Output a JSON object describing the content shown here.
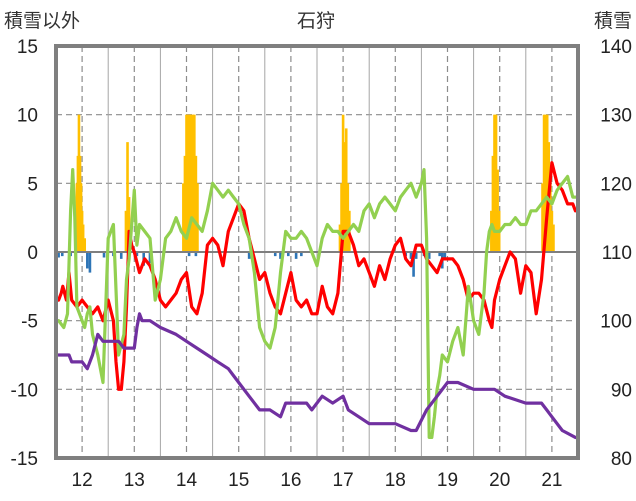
{
  "chart_data": {
    "type": "bar+line",
    "title": "石狩",
    "left_axis_label": "積雪以外",
    "right_axis_label": "積雪",
    "left_ylim": [
      -15,
      15
    ],
    "left_ticks": [
      15,
      10,
      5,
      0,
      -5,
      -10,
      -15
    ],
    "right_ylim": [
      80,
      140
    ],
    "right_ticks": [
      140,
      130,
      120,
      110,
      100,
      90,
      80
    ],
    "x_range": [
      11.5,
      21.5
    ],
    "x_ticks": [
      12,
      13,
      14,
      15,
      16,
      17,
      18,
      19,
      20,
      21
    ],
    "x_tick_labels": [
      "12",
      "13",
      "14",
      "15",
      "16",
      "17",
      "18",
      "19",
      "20",
      "21"
    ],
    "grid": "dashed vertical and horizontal",
    "colors": {
      "red": "#ff0000",
      "green": "#92d050",
      "purple": "#7030a0",
      "orange": "#ffc000",
      "blue": "#2e75b6",
      "frame": "#7f7f7f",
      "grid": "#8c8c8c"
    },
    "bars_orange": [
      [
        11.87,
        3
      ],
      [
        11.9,
        5
      ],
      [
        11.92,
        7
      ],
      [
        11.94,
        10
      ],
      [
        11.96,
        7
      ],
      [
        11.98,
        5
      ],
      [
        12.0,
        3
      ],
      [
        12.02,
        2
      ],
      [
        12.05,
        1
      ],
      [
        12.84,
        3
      ],
      [
        12.87,
        8
      ],
      [
        12.9,
        4
      ],
      [
        13.94,
        5
      ],
      [
        13.97,
        7
      ],
      [
        14.0,
        10
      ],
      [
        14.03,
        10
      ],
      [
        14.06,
        10
      ],
      [
        14.09,
        10
      ],
      [
        14.12,
        10
      ],
      [
        14.15,
        10
      ],
      [
        14.18,
        7
      ],
      [
        14.21,
        5
      ],
      [
        16.94,
        2
      ],
      [
        16.97,
        5
      ],
      [
        17.0,
        10
      ],
      [
        17.03,
        8
      ],
      [
        17.06,
        9
      ],
      [
        17.09,
        5
      ],
      [
        17.12,
        3
      ],
      [
        19.84,
        3
      ],
      [
        19.87,
        7
      ],
      [
        19.9,
        10
      ],
      [
        19.93,
        10
      ],
      [
        19.96,
        6
      ],
      [
        19.99,
        3
      ],
      [
        20.82,
        5
      ],
      [
        20.85,
        10
      ],
      [
        20.88,
        10
      ],
      [
        20.91,
        10
      ],
      [
        20.94,
        8
      ],
      [
        20.97,
        5
      ],
      [
        21.0,
        3
      ],
      [
        21.03,
        2
      ]
    ],
    "bars_blue": [
      [
        11.55,
        -0.4
      ],
      [
        11.62,
        -0.3
      ],
      [
        11.78,
        -0.3
      ],
      [
        11.88,
        -0.5
      ],
      [
        12.1,
        -1.2
      ],
      [
        12.15,
        -1.5
      ],
      [
        12.42,
        -0.4
      ],
      [
        12.6,
        -0.3
      ],
      [
        12.75,
        -0.5
      ],
      [
        13.05,
        -0.3
      ],
      [
        13.18,
        -1.0
      ],
      [
        13.3,
        -0.8
      ],
      [
        14.05,
        -0.3
      ],
      [
        14.18,
        -0.3
      ],
      [
        15.2,
        -0.5
      ],
      [
        15.7,
        -0.3
      ],
      [
        15.8,
        -0.5
      ],
      [
        15.95,
        -0.3
      ],
      [
        16.1,
        -0.5
      ],
      [
        16.2,
        -0.3
      ],
      [
        18.2,
        -0.3
      ],
      [
        18.3,
        -0.5
      ],
      [
        18.35,
        -1.8
      ],
      [
        18.4,
        -0.5
      ],
      [
        18.55,
        -0.3
      ],
      [
        18.65,
        -0.5
      ],
      [
        18.85,
        -0.3
      ],
      [
        18.9,
        -1.2
      ],
      [
        18.95,
        -0.5
      ]
    ],
    "series": [
      {
        "color": "red",
        "axis": "left",
        "x": [
          11.55,
          11.6,
          11.63,
          11.7,
          11.75,
          11.8,
          11.9,
          12.0,
          12.1,
          12.2,
          12.3,
          12.4,
          12.5,
          12.6,
          12.65,
          12.7,
          12.75,
          12.8,
          12.85,
          12.9,
          12.95,
          13.0,
          13.1,
          13.2,
          13.3,
          13.4,
          13.5,
          13.6,
          13.7,
          13.8,
          13.9,
          14.0,
          14.1,
          14.2,
          14.3,
          14.4,
          14.5,
          14.6,
          14.7,
          14.8,
          14.9,
          15.0,
          15.1,
          15.2,
          15.3,
          15.4,
          15.5,
          15.6,
          15.7,
          15.8,
          15.9,
          16.0,
          16.1,
          16.2,
          16.3,
          16.4,
          16.5,
          16.6,
          16.7,
          16.8,
          16.9,
          17.0,
          17.1,
          17.2,
          17.3,
          17.4,
          17.5,
          17.6,
          17.7,
          17.8,
          17.9,
          18.0,
          18.1,
          18.2,
          18.3,
          18.4,
          18.5,
          18.6,
          18.7,
          18.8,
          18.9,
          19.0,
          19.1,
          19.2,
          19.3,
          19.4,
          19.5,
          19.6,
          19.7,
          19.8,
          19.85,
          19.9,
          20.0,
          20.1,
          20.2,
          20.3,
          20.4,
          20.5,
          20.6,
          20.7,
          20.8,
          20.9,
          21.0,
          21.1,
          21.2,
          21.3,
          21.4,
          21.45
        ],
        "values": [
          -3.5,
          -3.0,
          -2.5,
          -3.5,
          -1.5,
          -3.5,
          -4.0,
          -3.5,
          -4.0,
          -4.5,
          -4.0,
          -5.0,
          -3.5,
          -5.0,
          -8.0,
          -10.0,
          -10.0,
          -8.0,
          -4.0,
          1.5,
          0.5,
          0.0,
          -1.5,
          -0.5,
          -1.0,
          -2.0,
          -3.5,
          -4.0,
          -3.5,
          -3.0,
          -2.0,
          -1.5,
          -4.0,
          -4.5,
          -3.0,
          0.5,
          1.0,
          0.5,
          -1.0,
          1.5,
          2.5,
          3.5,
          3.0,
          1.0,
          -0.5,
          -2.0,
          -1.5,
          -3.0,
          -4.0,
          -4.5,
          -3.0,
          -1.5,
          -3.5,
          -4.0,
          -3.5,
          -4.5,
          -4.5,
          -2.5,
          -4.0,
          -4.5,
          -3.0,
          1.5,
          1.5,
          0.5,
          -1.0,
          -0.5,
          -1.5,
          -2.5,
          -1.0,
          -2.0,
          -0.5,
          0.5,
          1.0,
          -0.5,
          -1.0,
          0.5,
          0.5,
          -0.5,
          -1.0,
          -1.5,
          -0.5,
          -0.5,
          -0.5,
          -1.0,
          -2.0,
          -3.5,
          -3.0,
          -3.0,
          -3.5,
          -5.0,
          -5.5,
          -3.5,
          -2.0,
          -1.0,
          0.0,
          -0.5,
          -3.0,
          -1.0,
          -1.5,
          -4.5,
          -2.0,
          2.5,
          6.5,
          5.0,
          4.5,
          3.5,
          3.5,
          3.0
        ]
      },
      {
        "color": "green",
        "axis": "left",
        "x": [
          11.55,
          11.65,
          11.72,
          11.78,
          11.82,
          11.86,
          11.9,
          12.0,
          12.05,
          12.1,
          12.15,
          12.2,
          12.3,
          12.4,
          12.5,
          12.6,
          12.7,
          12.8,
          12.85,
          12.9,
          13.0,
          13.05,
          13.1,
          13.2,
          13.3,
          13.4,
          13.5,
          13.6,
          13.7,
          13.8,
          13.9,
          14.0,
          14.1,
          14.2,
          14.3,
          14.4,
          14.5,
          14.6,
          14.7,
          14.8,
          14.9,
          15.0,
          15.1,
          15.2,
          15.3,
          15.4,
          15.5,
          15.6,
          15.7,
          15.8,
          15.9,
          16.0,
          16.1,
          16.2,
          16.3,
          16.4,
          16.5,
          16.6,
          16.7,
          16.8,
          16.9,
          17.0,
          17.1,
          17.2,
          17.3,
          17.4,
          17.5,
          17.6,
          17.7,
          17.8,
          17.9,
          18.0,
          18.1,
          18.2,
          18.3,
          18.4,
          18.5,
          18.55,
          18.6,
          18.65,
          18.7,
          18.75,
          18.8,
          18.85,
          18.9,
          19.0,
          19.1,
          19.2,
          19.3,
          19.4,
          19.5,
          19.6,
          19.7,
          19.75,
          19.8,
          19.85,
          19.9,
          20.0,
          20.1,
          20.2,
          20.3,
          20.4,
          20.5,
          20.6,
          20.7,
          20.8,
          20.9,
          21.0,
          21.1,
          21.2,
          21.3,
          21.4,
          21.45
        ],
        "values": [
          -5.0,
          -5.5,
          -4.5,
          3.0,
          6.0,
          2.5,
          -4.0,
          -5.0,
          -5.5,
          -4.5,
          -4.0,
          -6.0,
          -7.5,
          -9.5,
          1.0,
          2.0,
          -7.5,
          -6.0,
          -2.0,
          -0.5,
          4.5,
          0.5,
          2.0,
          1.5,
          1.0,
          -3.5,
          -2.0,
          1.0,
          1.5,
          2.5,
          1.5,
          1.0,
          2.5,
          2.0,
          1.5,
          3.0,
          5.0,
          4.5,
          4.0,
          4.5,
          4.0,
          3.5,
          2.0,
          1.0,
          -1.5,
          -5.5,
          -6.5,
          -7.0,
          -5.5,
          -1.5,
          1.5,
          1.0,
          1.0,
          1.5,
          1.0,
          0.0,
          -1.0,
          1.0,
          2.0,
          1.5,
          1.5,
          1.0,
          1.5,
          2.0,
          1.5,
          3.0,
          3.5,
          2.5,
          3.5,
          4.0,
          3.5,
          3.0,
          4.0,
          4.5,
          5.0,
          4.0,
          5.0,
          6.0,
          1.0,
          -13.5,
          -13.5,
          -12.0,
          -10.0,
          -9.0,
          -7.5,
          -8.0,
          -6.5,
          -5.5,
          -7.5,
          -2.5,
          -5.0,
          -6.0,
          -3.0,
          0.0,
          1.5,
          2.0,
          1.5,
          1.5,
          2.0,
          2.0,
          2.5,
          2.0,
          2.0,
          3.0,
          3.0,
          3.5,
          4.0,
          3.5,
          4.5,
          5.0,
          5.5,
          4.0,
          4.0
        ]
      },
      {
        "color": "purple",
        "axis": "right",
        "x": [
          11.55,
          11.75,
          11.8,
          12.0,
          12.1,
          12.2,
          12.3,
          12.4,
          12.5,
          12.7,
          12.8,
          12.9,
          13.0,
          13.05,
          13.1,
          13.15,
          13.3,
          13.5,
          13.8,
          14.0,
          14.2,
          14.4,
          14.6,
          14.8,
          14.9,
          15.0,
          15.2,
          15.4,
          15.6,
          15.8,
          15.9,
          16.0,
          16.3,
          16.4,
          16.6,
          16.8,
          17.0,
          17.05,
          17.1,
          17.3,
          17.5,
          18.0,
          18.3,
          18.4,
          18.6,
          18.8,
          19.0,
          19.2,
          19.5,
          19.8,
          19.9,
          20.1,
          20.5,
          20.8,
          20.9,
          21.0,
          21.2,
          21.45
        ],
        "values": [
          95,
          95,
          94,
          94,
          93,
          95,
          98,
          97,
          97,
          97,
          96,
          96,
          96,
          99,
          101,
          100,
          100,
          99,
          98,
          97,
          96,
          95,
          94,
          93,
          92,
          91,
          89,
          87,
          87,
          86,
          88,
          88,
          88,
          87,
          89,
          88,
          89,
          88,
          87,
          86,
          85,
          85,
          84,
          84,
          87,
          89,
          91,
          91,
          90,
          90,
          90,
          89,
          88,
          88,
          87,
          86,
          84,
          83
        ]
      }
    ]
  }
}
